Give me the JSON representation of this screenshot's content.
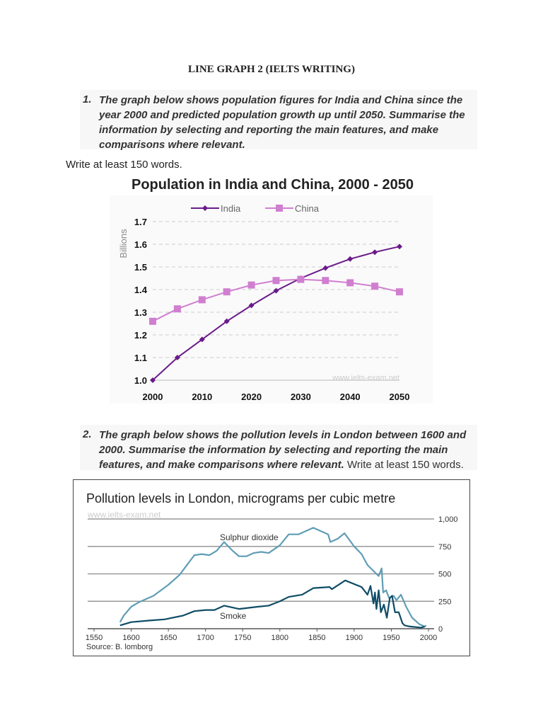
{
  "document": {
    "title": "LINE GRAPH 2 (IELTS WRITING)",
    "questions": [
      {
        "number": "1.",
        "text": "The graph below shows population figures for India and China since the year 2000 and predicted population growth up until 2050. Summarise the information by selecting and reporting the main features, and make comparisons where relevant.",
        "after": "Write at least 150 words."
      },
      {
        "number": "2.",
        "text": "The graph below shows the pollution levels in London between 1600 and 2000. Summarise the information by selecting and reporting the main features, and make comparisons where relevant.",
        "after": "Write at least 150 words."
      }
    ]
  },
  "chart_data": [
    {
      "type": "line",
      "title": "Population in India and China, 2000 - 2050",
      "ylabel": "Billions",
      "xlabel": "",
      "x": [
        2000,
        2005,
        2010,
        2015,
        2020,
        2025,
        2030,
        2035,
        2040,
        2045,
        2050
      ],
      "xticks": [
        "2000",
        "2010",
        "2020",
        "2030",
        "2040",
        "2050"
      ],
      "yticks": [
        "1.0",
        "1.1",
        "1.2",
        "1.3",
        "1.4",
        "1.5",
        "1.6",
        "1.7"
      ],
      "ylim": [
        1.0,
        1.7
      ],
      "xlim": [
        2000,
        2050
      ],
      "grid": "horizontal dashed",
      "legend": "top",
      "watermark": "www.ielts-exam.net",
      "series": [
        {
          "name": "India",
          "color": "#6a1b8a",
          "marker": "diamond",
          "values": [
            1.0,
            1.1,
            1.18,
            1.26,
            1.33,
            1.395,
            1.45,
            1.495,
            1.535,
            1.565,
            1.59
          ]
        },
        {
          "name": "China",
          "color": "#d07fd0",
          "marker": "square",
          "values": [
            1.26,
            1.315,
            1.355,
            1.39,
            1.42,
            1.44,
            1.445,
            1.44,
            1.43,
            1.415,
            1.39
          ]
        }
      ]
    },
    {
      "type": "line",
      "title": "Pollution levels in London, micrograms per cubic metre",
      "watermark": "www.ielts-exam.net",
      "source": "Source: B. lomborg",
      "xlim": [
        1550,
        2000
      ],
      "ylim": [
        0,
        1000
      ],
      "xticks": [
        "1550",
        "1600",
        "1650",
        "1700",
        "1750",
        "1800",
        "1850",
        "1900",
        "1950",
        "2000"
      ],
      "yticks": [
        "0",
        "250",
        "500",
        "750",
        "1,000"
      ],
      "grid": "horizontal solid",
      "legend": "inline labels",
      "series": [
        {
          "name": "Sulphur dioxide",
          "color": "#5f9db5",
          "x": [
            1585,
            1590,
            1600,
            1610,
            1630,
            1650,
            1665,
            1685,
            1695,
            1705,
            1715,
            1725,
            1735,
            1745,
            1755,
            1765,
            1775,
            1785,
            1800,
            1812,
            1825,
            1845,
            1865,
            1868,
            1878,
            1887,
            1900,
            1910,
            1918,
            1933,
            1937,
            1939,
            1943,
            1947,
            1953,
            1957,
            1963,
            1970,
            1978,
            1988,
            1995,
            1997
          ],
          "values": [
            60,
            120,
            200,
            240,
            300,
            400,
            490,
            670,
            680,
            670,
            710,
            790,
            720,
            660,
            660,
            690,
            700,
            690,
            760,
            860,
            860,
            920,
            860,
            790,
            820,
            870,
            750,
            680,
            580,
            480,
            550,
            330,
            350,
            280,
            300,
            260,
            310,
            200,
            100,
            40,
            20,
            30
          ]
        },
        {
          "name": "Smoke",
          "color": "#0f4c66",
          "x": [
            1585,
            1600,
            1625,
            1645,
            1670,
            1685,
            1700,
            1712,
            1725,
            1745,
            1770,
            1785,
            1800,
            1812,
            1830,
            1845,
            1867,
            1870,
            1888,
            1910,
            1918,
            1922,
            1926,
            1928,
            1930,
            1933,
            1936,
            1940,
            1944,
            1948,
            1951,
            1955,
            1960,
            1965,
            1968,
            1975,
            1990,
            1995
          ],
          "values": [
            30,
            60,
            75,
            85,
            120,
            160,
            170,
            170,
            210,
            180,
            200,
            210,
            250,
            290,
            310,
            370,
            380,
            360,
            440,
            380,
            310,
            390,
            230,
            330,
            180,
            350,
            150,
            220,
            100,
            280,
            300,
            150,
            150,
            50,
            30,
            20,
            10,
            20
          ]
        }
      ]
    }
  ]
}
